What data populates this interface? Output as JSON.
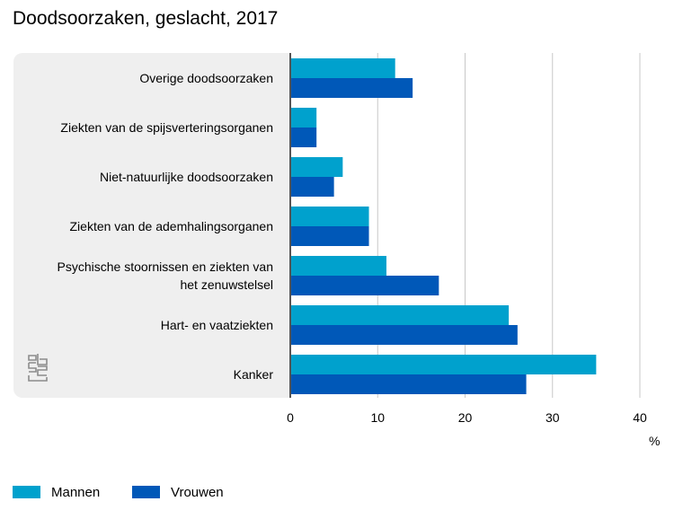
{
  "title": "Doodsoorzaken, geslacht, 2017",
  "colors": {
    "mannen": "#00a1cd",
    "vrouwen": "#0058b8",
    "panel": "#efefef",
    "grid": "#c8c8c8",
    "axis": "#555555"
  },
  "chart_data": {
    "type": "bar",
    "orientation": "horizontal",
    "title": "Doodsoorzaken, geslacht, 2017",
    "categories": [
      [
        "Overige doodsoorzaken"
      ],
      [
        "Ziekten van de spijsverteringsorganen"
      ],
      [
        "Niet-natuurlijke doodsoorzaken"
      ],
      [
        "Ziekten van de ademhalingsorganen"
      ],
      [
        "Psychische stoornissen en ziekten van",
        "het zenuwstelsel"
      ],
      [
        "Hart- en vaatziekten"
      ],
      [
        "Kanker"
      ]
    ],
    "series": [
      {
        "name": "Mannen",
        "values": [
          12,
          3,
          6,
          9,
          11,
          25,
          35
        ]
      },
      {
        "name": "Vrouwen",
        "values": [
          14,
          3,
          5,
          9,
          17,
          26,
          27
        ]
      }
    ],
    "xlim": [
      0,
      40
    ],
    "xticks": [
      0,
      10,
      20,
      30,
      40
    ],
    "xlabel": "%",
    "grid": true,
    "legend_position": "bottom-left"
  },
  "legend": {
    "mannen": "Mannen",
    "vrouwen": "Vrouwen"
  },
  "logo": "cbs"
}
